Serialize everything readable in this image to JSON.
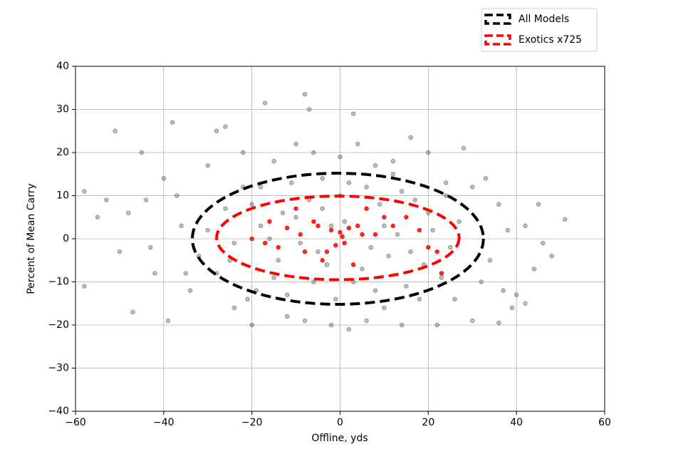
{
  "chart_data": {
    "type": "scatter",
    "xlabel": "Offline, yds",
    "ylabel": "Percent of Mean Carry",
    "xlim": [
      -60,
      60
    ],
    "ylim": [
      -40,
      40
    ],
    "xticks": [
      {
        "value": -60,
        "label": "−60"
      },
      {
        "value": -40,
        "label": "−40"
      },
      {
        "value": -20,
        "label": "−20"
      },
      0,
      20,
      40,
      60
    ],
    "yticks": [
      {
        "value": -40,
        "label": "−40"
      },
      {
        "value": -30,
        "label": "−30"
      },
      {
        "value": -20,
        "label": "−20"
      },
      {
        "value": -10,
        "label": "−10"
      },
      0,
      10,
      20,
      30,
      40
    ],
    "grid": true,
    "legend": "upper right",
    "series": [
      {
        "name": "All Models",
        "color": "#000000",
        "ellipse": {
          "cx": -0.5,
          "cy": 0,
          "rx": 33,
          "ry": 15.2
        }
      },
      {
        "name": "Exotics x725",
        "color": "#ff0000",
        "ellipse": {
          "cx": -0.5,
          "cy": 0.2,
          "rx": 27.5,
          "ry": 9.7
        }
      }
    ],
    "points": [
      {
        "color": "#000000",
        "x": [
          -51,
          -38,
          -58,
          -58,
          -47,
          -39,
          51,
          48,
          42,
          -8,
          -7,
          -17,
          3,
          45,
          -45,
          -26,
          -28,
          36,
          40,
          30,
          -55,
          -50,
          -44,
          -42,
          -40,
          -36,
          -34,
          -30,
          -24,
          -22,
          -20,
          -18,
          -15,
          -12,
          -10,
          -8,
          -6,
          -4,
          -2,
          0,
          2,
          4,
          6,
          8,
          10,
          12,
          14,
          16,
          18,
          20,
          22,
          24,
          26,
          28,
          30,
          32,
          34,
          36,
          38,
          44,
          -30,
          -25,
          -20,
          -15,
          -10,
          -5,
          0,
          5,
          10,
          15,
          20,
          25,
          -28,
          -22,
          -16,
          -12,
          -7,
          -3,
          1,
          6,
          11,
          17,
          23,
          27,
          -32,
          -26,
          -19,
          -13,
          -9,
          -1,
          3,
          9,
          13,
          19,
          24,
          -24,
          -18,
          -11,
          -4,
          7,
          14,
          21,
          -14,
          -6,
          2,
          8,
          16,
          -21,
          -2,
          12,
          -35,
          -48,
          37,
          42,
          -43,
          33,
          -37,
          46,
          -53,
          39
        ],
        "values": [
          25,
          27,
          11,
          -11,
          -17,
          -19,
          4.5,
          -4,
          -15,
          33.5,
          30,
          31.5,
          29,
          8,
          20,
          26,
          25,
          -19.5,
          -13,
          -19,
          5,
          -3,
          9,
          -8,
          14,
          3,
          -12,
          17,
          -16,
          20,
          -20,
          12,
          18,
          -18,
          22,
          -19,
          20,
          14,
          -20,
          19,
          -21,
          22,
          -19,
          17,
          -16,
          18,
          -20,
          23.5,
          -14,
          20,
          -20,
          13,
          -14,
          21,
          12,
          -10,
          -5,
          8,
          2,
          -7,
          2,
          -5,
          8,
          -9,
          5,
          -3,
          10,
          -7,
          3,
          -11,
          6,
          -2,
          -8,
          12,
          0,
          -13,
          9,
          -6,
          4,
          12,
          -4,
          9,
          -9,
          4,
          -4,
          7,
          -12,
          6,
          -1,
          -14,
          -10,
          8,
          1,
          -6,
          10,
          -1,
          3,
          13,
          7,
          -2,
          11,
          2,
          -5,
          -10,
          13,
          -12,
          -3,
          -14,
          3,
          15,
          -8,
          6,
          -12,
          3,
          -2,
          14,
          10,
          -1,
          9,
          -16
        ]
      },
      {
        "color": "#ff0000",
        "x": [
          -16,
          -12,
          -10,
          -6,
          -5,
          -2,
          0,
          2,
          4,
          6,
          8,
          10,
          12,
          15,
          18,
          20,
          22,
          23,
          -17,
          -14,
          -8,
          -3,
          -1,
          1,
          3,
          5,
          -20,
          -9,
          -4,
          0.5
        ],
        "values": [
          4,
          2.5,
          7,
          4,
          3,
          2,
          1.5,
          2.5,
          3,
          7,
          1,
          5,
          3,
          5,
          2,
          -2,
          -3,
          -8,
          -1,
          -2,
          -3,
          -3,
          -1.5,
          -1,
          -6,
          1,
          0,
          1,
          -5,
          0.5
        ]
      }
    ]
  }
}
